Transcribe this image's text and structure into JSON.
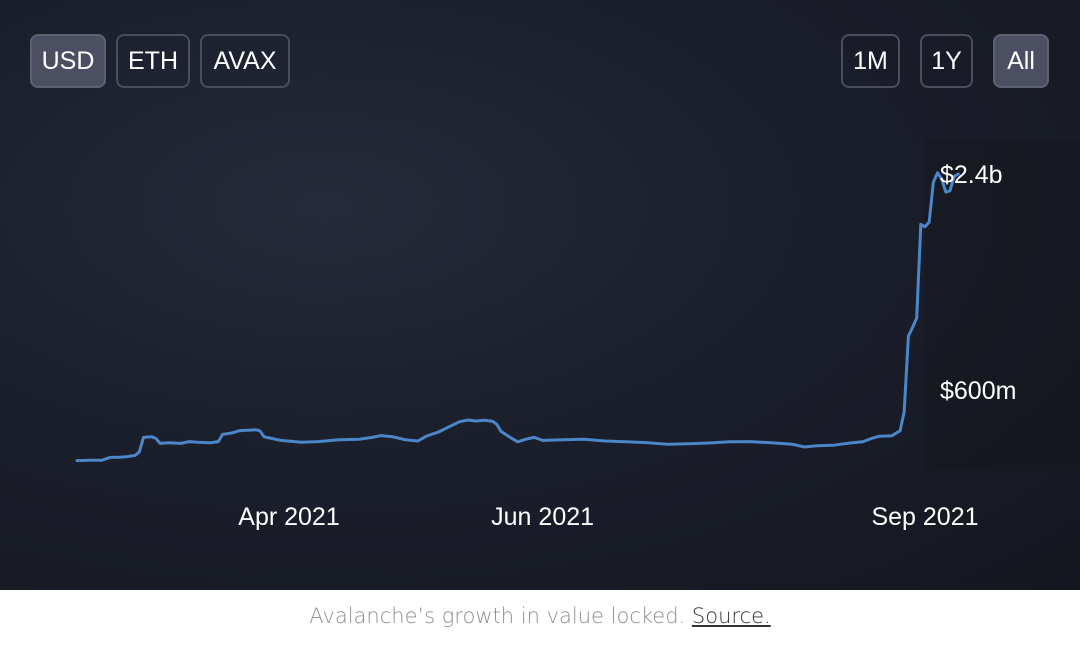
{
  "controls": {
    "currency": [
      {
        "label": "USD",
        "active": true
      },
      {
        "label": "ETH",
        "active": false
      },
      {
        "label": "AVAX",
        "active": false
      }
    ],
    "range": [
      {
        "label": "1M",
        "active": false
      },
      {
        "label": "1Y",
        "active": false
      },
      {
        "label": "All",
        "active": true
      }
    ]
  },
  "colors": {
    "line": "#4a86c8",
    "background": "#1b1f2c",
    "button_active": "#4b4f61"
  },
  "caption": {
    "text": "Avalanche’s growth in value locked.",
    "link": "Source."
  },
  "chart_data": {
    "type": "line",
    "title": "",
    "xlabel": "",
    "ylabel": "",
    "x_ticks": [
      "Apr 2021",
      "Jun 2021",
      "Sep 2021"
    ],
    "y_ticks": [
      {
        "value": 600,
        "label": "$600m"
      },
      {
        "value": 2400,
        "label": "$2.4b"
      }
    ],
    "y_unit": "USD millions",
    "ylim": [
      0,
      2500
    ],
    "series": [
      {
        "name": "",
        "points": [
          [
            "2021-02-09",
            12
          ],
          [
            "2021-02-12",
            14
          ],
          [
            "2021-02-15",
            15
          ],
          [
            "2021-02-17",
            38
          ],
          [
            "2021-02-19",
            40
          ],
          [
            "2021-02-21",
            44
          ],
          [
            "2021-02-23",
            55
          ],
          [
            "2021-02-24",
            85
          ],
          [
            "2021-02-25",
            205
          ],
          [
            "2021-02-27",
            210
          ],
          [
            "2021-02-28",
            195
          ],
          [
            "2021-03-01",
            155
          ],
          [
            "2021-03-03",
            160
          ],
          [
            "2021-03-06",
            155
          ],
          [
            "2021-03-08",
            170
          ],
          [
            "2021-03-10",
            165
          ],
          [
            "2021-03-13",
            160
          ],
          [
            "2021-03-15",
            170
          ],
          [
            "2021-03-16",
            230
          ],
          [
            "2021-03-18",
            240
          ],
          [
            "2021-03-20",
            260
          ],
          [
            "2021-03-22",
            265
          ],
          [
            "2021-03-24",
            268
          ],
          [
            "2021-03-25",
            260
          ],
          [
            "2021-03-26",
            210
          ],
          [
            "2021-03-30",
            180
          ],
          [
            "2021-04-04",
            165
          ],
          [
            "2021-04-08",
            170
          ],
          [
            "2021-04-13",
            185
          ],
          [
            "2021-04-18",
            190
          ],
          [
            "2021-04-21",
            205
          ],
          [
            "2021-04-23",
            220
          ],
          [
            "2021-04-26",
            210
          ],
          [
            "2021-04-29",
            185
          ],
          [
            "2021-05-02",
            175
          ],
          [
            "2021-05-04",
            215
          ],
          [
            "2021-05-07",
            250
          ],
          [
            "2021-05-09",
            285
          ],
          [
            "2021-05-12",
            335
          ],
          [
            "2021-05-14",
            350
          ],
          [
            "2021-05-16",
            342
          ],
          [
            "2021-05-18",
            348
          ],
          [
            "2021-05-20",
            338
          ],
          [
            "2021-05-21",
            315
          ],
          [
            "2021-05-22",
            255
          ],
          [
            "2021-05-24",
            210
          ],
          [
            "2021-05-26",
            168
          ],
          [
            "2021-05-28",
            190
          ],
          [
            "2021-05-30",
            205
          ],
          [
            "2021-06-01",
            180
          ],
          [
            "2021-06-06",
            185
          ],
          [
            "2021-06-11",
            190
          ],
          [
            "2021-06-16",
            175
          ],
          [
            "2021-06-21",
            168
          ],
          [
            "2021-06-26",
            162
          ],
          [
            "2021-07-01",
            148
          ],
          [
            "2021-07-06",
            152
          ],
          [
            "2021-07-11",
            158
          ],
          [
            "2021-07-16",
            168
          ],
          [
            "2021-07-21",
            170
          ],
          [
            "2021-07-26",
            160
          ],
          [
            "2021-07-31",
            148
          ],
          [
            "2021-08-03",
            125
          ],
          [
            "2021-08-06",
            135
          ],
          [
            "2021-08-10",
            140
          ],
          [
            "2021-08-14",
            158
          ],
          [
            "2021-08-17",
            168
          ],
          [
            "2021-08-19",
            195
          ],
          [
            "2021-08-21",
            215
          ],
          [
            "2021-08-24",
            218
          ],
          [
            "2021-08-26",
            260
          ],
          [
            "2021-08-27",
            420
          ],
          [
            "2021-08-28",
            1050
          ],
          [
            "2021-08-29",
            1120
          ],
          [
            "2021-08-30",
            1200
          ],
          [
            "2021-08-31",
            1980
          ],
          [
            "2021-09-01",
            1960
          ],
          [
            "2021-09-02",
            2000
          ],
          [
            "2021-09-03",
            2330
          ],
          [
            "2021-09-04",
            2410
          ],
          [
            "2021-09-05",
            2360
          ],
          [
            "2021-09-06",
            2250
          ],
          [
            "2021-09-07",
            2260
          ],
          [
            "2021-09-08",
            2380
          ],
          [
            "2021-09-09",
            2400
          ]
        ]
      }
    ]
  }
}
